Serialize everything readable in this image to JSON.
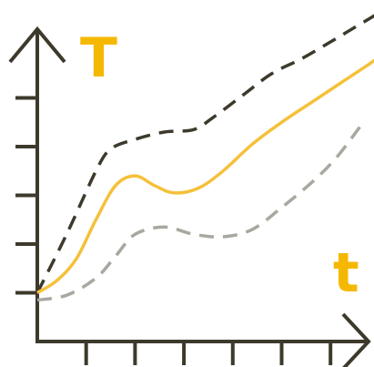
{
  "chart_data": {
    "type": "line",
    "ylabel": "T",
    "xlabel": "t",
    "xlim": [
      0,
      7
    ],
    "ylim": [
      0,
      6
    ],
    "x_ticks": [
      1,
      2,
      3,
      4,
      5,
      6
    ],
    "y_ticks": [
      1,
      2,
      3,
      4,
      5
    ],
    "grid": false,
    "legend": "none",
    "colors": {
      "axis": "#3d3a2c",
      "label": "#f5b800",
      "upper": "#3d3a2c",
      "middle": "#f5c13a",
      "lower": "#a8a8a0"
    },
    "series": [
      {
        "key": "upper",
        "style": "dashed",
        "x": [
          0,
          0.6,
          1.2,
          1.5,
          2.0,
          2.6,
          3.2,
          3.6,
          4.2,
          4.8,
          5.4,
          6.0,
          6.5,
          7.0
        ],
        "y": [
          1.0,
          2.2,
          3.5,
          3.95,
          4.15,
          4.3,
          4.35,
          4.6,
          5.05,
          5.5,
          5.8,
          6.15,
          6.45,
          6.75
        ]
      },
      {
        "key": "middle",
        "style": "solid",
        "x": [
          0,
          0.4,
          0.8,
          1.2,
          1.6,
          2.0,
          2.4,
          2.8,
          3.3,
          3.8,
          4.4,
          5.0,
          5.6,
          6.2,
          6.8,
          7.0
        ],
        "y": [
          1.0,
          1.25,
          1.7,
          2.5,
          3.2,
          3.4,
          3.2,
          3.05,
          3.15,
          3.5,
          4.05,
          4.5,
          4.9,
          5.3,
          5.7,
          5.85
        ]
      },
      {
        "key": "lower",
        "style": "dashed",
        "x": [
          0,
          0.6,
          1.2,
          1.6,
          2.0,
          2.6,
          3.2,
          3.8,
          4.4,
          5.0,
          5.6,
          6.1,
          6.6
        ],
        "y": [
          0.85,
          0.95,
          1.3,
          1.75,
          2.2,
          2.35,
          2.2,
          2.15,
          2.3,
          2.75,
          3.25,
          3.75,
          4.4
        ]
      }
    ]
  }
}
